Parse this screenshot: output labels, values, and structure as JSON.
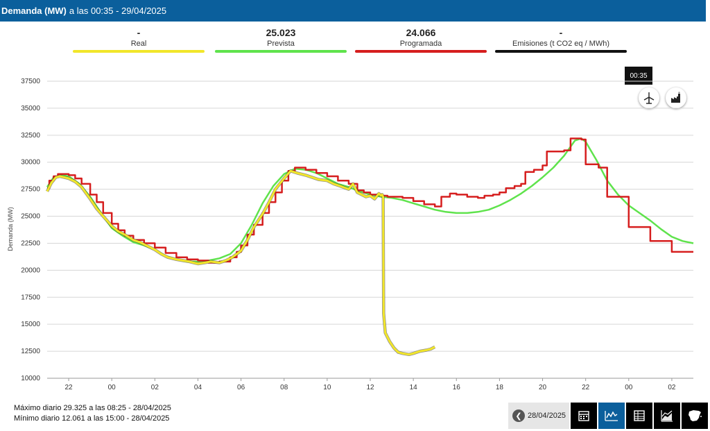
{
  "header": {
    "title": "Demanda (MW)",
    "subtitle": "a las 00:35 - 29/04/2025"
  },
  "indicators": [
    {
      "value": "-",
      "label": "Real",
      "color": "#f2e62a"
    },
    {
      "value": "25.023",
      "label": "Prevista",
      "color": "#5fe34c"
    },
    {
      "value": "24.066",
      "label": "Programada",
      "color": "#d61e1e"
    },
    {
      "value": "-",
      "label": "Emisiones (t CO2 eq / MWh)",
      "color": "#111111"
    }
  ],
  "tooltip": "00:35",
  "icons": {
    "wind_button": "wind-turbine-icon",
    "factory_button": "factory-icon"
  },
  "stats": {
    "max": "Máximo diario 29.325 a las 08:25 - 28/04/2025",
    "min": "Mínimo diario 12.061 a las 15:00 - 28/04/2025"
  },
  "toolbar": {
    "date": "28/04/2025",
    "buttons": [
      "calendar-icon",
      "line-chart-icon",
      "table-icon",
      "stacked-area-icon",
      "spain-map-icon"
    ]
  },
  "chart_data": {
    "type": "line",
    "ylabel": "Demanda (MW)",
    "ylim": [
      10000,
      37500
    ],
    "yticks": [
      10000,
      12500,
      15000,
      17500,
      20000,
      22500,
      25000,
      27500,
      30000,
      32500,
      35000,
      37500
    ],
    "xticks": [
      {
        "x": 22,
        "label": "22"
      },
      {
        "x": 24,
        "label": "00"
      },
      {
        "x": 26,
        "label": "02"
      },
      {
        "x": 28,
        "label": "04"
      },
      {
        "x": 30,
        "label": "06"
      },
      {
        "x": 32,
        "label": "08"
      },
      {
        "x": 34,
        "label": "10"
      },
      {
        "x": 36,
        "label": "12"
      },
      {
        "x": 38,
        "label": "14"
      },
      {
        "x": 40,
        "label": "16"
      },
      {
        "x": 42,
        "label": "18"
      },
      {
        "x": 44,
        "label": "20"
      },
      {
        "x": 46,
        "label": "22"
      },
      {
        "x": 48,
        "label": "00"
      },
      {
        "x": 50,
        "label": "02"
      }
    ],
    "xlim": [
      21.0,
      51.0
    ],
    "grid": true,
    "series": [
      {
        "name": "Prevista",
        "color": "#5fe34c",
        "step": false,
        "points": [
          [
            21.0,
            27700
          ],
          [
            21.3,
            28600
          ],
          [
            21.7,
            28800
          ],
          [
            22.0,
            28700
          ],
          [
            22.5,
            28000
          ],
          [
            23.0,
            26800
          ],
          [
            23.5,
            25300
          ],
          [
            24.0,
            23900
          ],
          [
            24.5,
            23200
          ],
          [
            25.0,
            22600
          ],
          [
            25.5,
            22300
          ],
          [
            26.0,
            21900
          ],
          [
            26.5,
            21300
          ],
          [
            27.0,
            21000
          ],
          [
            27.5,
            20800
          ],
          [
            28.0,
            20800
          ],
          [
            28.5,
            20900
          ],
          [
            29.0,
            21100
          ],
          [
            29.5,
            21500
          ],
          [
            30.0,
            22500
          ],
          [
            30.5,
            24200
          ],
          [
            31.0,
            26200
          ],
          [
            31.5,
            27800
          ],
          [
            32.0,
            28900
          ],
          [
            32.5,
            29400
          ],
          [
            33.0,
            29300
          ],
          [
            33.5,
            29000
          ],
          [
            34.0,
            28500
          ],
          [
            34.5,
            28000
          ],
          [
            35.0,
            27700
          ],
          [
            35.5,
            27300
          ],
          [
            36.0,
            27000
          ],
          [
            36.5,
            26800
          ],
          [
            37.0,
            26700
          ],
          [
            37.5,
            26500
          ],
          [
            38.0,
            26200
          ],
          [
            38.5,
            25900
          ],
          [
            39.0,
            25600
          ],
          [
            39.5,
            25400
          ],
          [
            40.0,
            25300
          ],
          [
            40.5,
            25300
          ],
          [
            41.0,
            25400
          ],
          [
            41.5,
            25600
          ],
          [
            42.0,
            26000
          ],
          [
            42.5,
            26500
          ],
          [
            43.0,
            27100
          ],
          [
            43.5,
            27800
          ],
          [
            44.0,
            28600
          ],
          [
            44.5,
            29500
          ],
          [
            45.0,
            30600
          ],
          [
            45.5,
            32000
          ],
          [
            45.8,
            32200
          ],
          [
            46.0,
            31900
          ],
          [
            46.5,
            30200
          ],
          [
            47.0,
            28300
          ],
          [
            47.5,
            27000
          ],
          [
            48.0,
            26000
          ],
          [
            48.5,
            25300
          ],
          [
            49.0,
            24600
          ],
          [
            49.5,
            23800
          ],
          [
            50.0,
            23100
          ],
          [
            50.5,
            22700
          ],
          [
            51.0,
            22500
          ]
        ]
      },
      {
        "name": "Programada",
        "color": "#d61e1e",
        "step": true,
        "points": [
          [
            21.0,
            27600
          ],
          [
            21.1,
            28300
          ],
          [
            21.3,
            28700
          ],
          [
            21.5,
            28900
          ],
          [
            22.0,
            28800
          ],
          [
            22.3,
            28500
          ],
          [
            22.6,
            28000
          ],
          [
            23.0,
            27000
          ],
          [
            23.3,
            26300
          ],
          [
            23.6,
            25300
          ],
          [
            24.0,
            24300
          ],
          [
            24.3,
            23700
          ],
          [
            24.6,
            23200
          ],
          [
            25.0,
            22800
          ],
          [
            25.5,
            22500
          ],
          [
            26.0,
            22100
          ],
          [
            26.5,
            21600
          ],
          [
            27.0,
            21200
          ],
          [
            27.5,
            21000
          ],
          [
            28.0,
            20900
          ],
          [
            28.5,
            20700
          ],
          [
            29.0,
            20800
          ],
          [
            29.5,
            21200
          ],
          [
            29.8,
            21700
          ],
          [
            30.0,
            22300
          ],
          [
            30.3,
            23300
          ],
          [
            30.6,
            24200
          ],
          [
            31.0,
            25300
          ],
          [
            31.3,
            26300
          ],
          [
            31.6,
            27200
          ],
          [
            31.9,
            28300
          ],
          [
            32.2,
            29200
          ],
          [
            32.5,
            29500
          ],
          [
            33.0,
            29300
          ],
          [
            33.5,
            29000
          ],
          [
            34.0,
            28700
          ],
          [
            34.5,
            28300
          ],
          [
            35.0,
            28000
          ],
          [
            35.4,
            27400
          ],
          [
            35.7,
            27200
          ],
          [
            36.0,
            27000
          ],
          [
            36.5,
            26900
          ],
          [
            36.8,
            26800
          ],
          [
            37.5,
            26700
          ],
          [
            38.0,
            26400
          ],
          [
            38.5,
            26100
          ],
          [
            39.0,
            25900
          ],
          [
            39.3,
            26800
          ],
          [
            39.7,
            27100
          ],
          [
            40.0,
            27000
          ],
          [
            40.5,
            26800
          ],
          [
            41.0,
            26700
          ],
          [
            41.3,
            26900
          ],
          [
            41.7,
            27000
          ],
          [
            42.0,
            27200
          ],
          [
            42.3,
            27600
          ],
          [
            42.7,
            27800
          ],
          [
            43.0,
            28000
          ],
          [
            43.2,
            29100
          ],
          [
            43.6,
            29300
          ],
          [
            44.0,
            29700
          ],
          [
            44.2,
            31000
          ],
          [
            45.0,
            31100
          ],
          [
            45.3,
            32200
          ],
          [
            45.8,
            32100
          ],
          [
            46.0,
            29800
          ],
          [
            46.6,
            29500
          ],
          [
            47.0,
            26800
          ],
          [
            48.0,
            24000
          ],
          [
            49.0,
            22700
          ],
          [
            50.0,
            21700
          ],
          [
            51.0,
            21700
          ]
        ]
      },
      {
        "name": "Real",
        "color": "#f2e62a",
        "step": false,
        "points": [
          [
            21.0,
            27300
          ],
          [
            21.2,
            28100
          ],
          [
            21.4,
            28600
          ],
          [
            21.6,
            28700
          ],
          [
            21.8,
            28600
          ],
          [
            22.0,
            28500
          ],
          [
            22.3,
            28200
          ],
          [
            22.6,
            27700
          ],
          [
            23.0,
            26600
          ],
          [
            23.3,
            25700
          ],
          [
            23.6,
            25000
          ],
          [
            24.0,
            24100
          ],
          [
            24.3,
            23600
          ],
          [
            24.6,
            23300
          ],
          [
            25.0,
            22800
          ],
          [
            25.3,
            22600
          ],
          [
            25.6,
            22300
          ],
          [
            26.0,
            21900
          ],
          [
            26.3,
            21500
          ],
          [
            26.6,
            21200
          ],
          [
            27.0,
            21000
          ],
          [
            27.3,
            20900
          ],
          [
            27.6,
            20800
          ],
          [
            28.0,
            20600
          ],
          [
            28.3,
            20700
          ],
          [
            28.6,
            20800
          ],
          [
            29.0,
            20700
          ],
          [
            29.3,
            20900
          ],
          [
            29.6,
            21200
          ],
          [
            30.0,
            21800
          ],
          [
            30.3,
            22800
          ],
          [
            30.6,
            24000
          ],
          [
            31.0,
            25200
          ],
          [
            31.3,
            26300
          ],
          [
            31.6,
            27500
          ],
          [
            32.0,
            28500
          ],
          [
            32.3,
            29200
          ],
          [
            32.6,
            29000
          ],
          [
            33.0,
            28800
          ],
          [
            33.3,
            28600
          ],
          [
            33.6,
            28400
          ],
          [
            34.0,
            28300
          ],
          [
            34.3,
            28000
          ],
          [
            34.6,
            27800
          ],
          [
            35.0,
            27500
          ],
          [
            35.2,
            28000
          ],
          [
            35.4,
            27200
          ],
          [
            35.6,
            27000
          ],
          [
            35.8,
            26800
          ],
          [
            36.0,
            26900
          ],
          [
            36.2,
            26600
          ],
          [
            36.4,
            27100
          ],
          [
            36.5,
            26900
          ],
          [
            36.55,
            27000
          ],
          [
            36.6,
            26800
          ],
          [
            36.62,
            16000
          ],
          [
            36.7,
            14200
          ],
          [
            36.9,
            13400
          ],
          [
            37.1,
            12800
          ],
          [
            37.3,
            12400
          ],
          [
            37.5,
            12300
          ],
          [
            37.8,
            12200
          ],
          [
            38.0,
            12300
          ],
          [
            38.3,
            12500
          ],
          [
            38.6,
            12600
          ],
          [
            38.8,
            12700
          ],
          [
            39.0,
            12900
          ]
        ]
      }
    ]
  }
}
